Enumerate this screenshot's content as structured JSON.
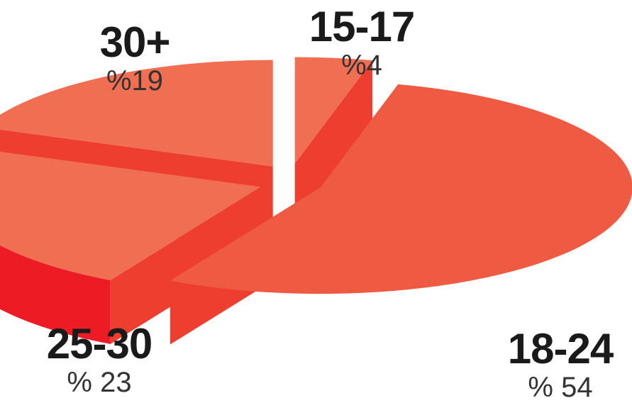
{
  "chart_data": {
    "type": "pie",
    "categories": [
      "15-17",
      "18-24",
      "25-30",
      "30+"
    ],
    "values": [
      4,
      54,
      23,
      19
    ],
    "value_labels": [
      "%4",
      "% 54",
      "% 23",
      "%19"
    ],
    "style": "3d-exploded",
    "colors": {
      "top": "#f06e52",
      "top_large": "#ef5a42",
      "side": "#ed1c24",
      "cut_face": "#ee3e30"
    }
  }
}
